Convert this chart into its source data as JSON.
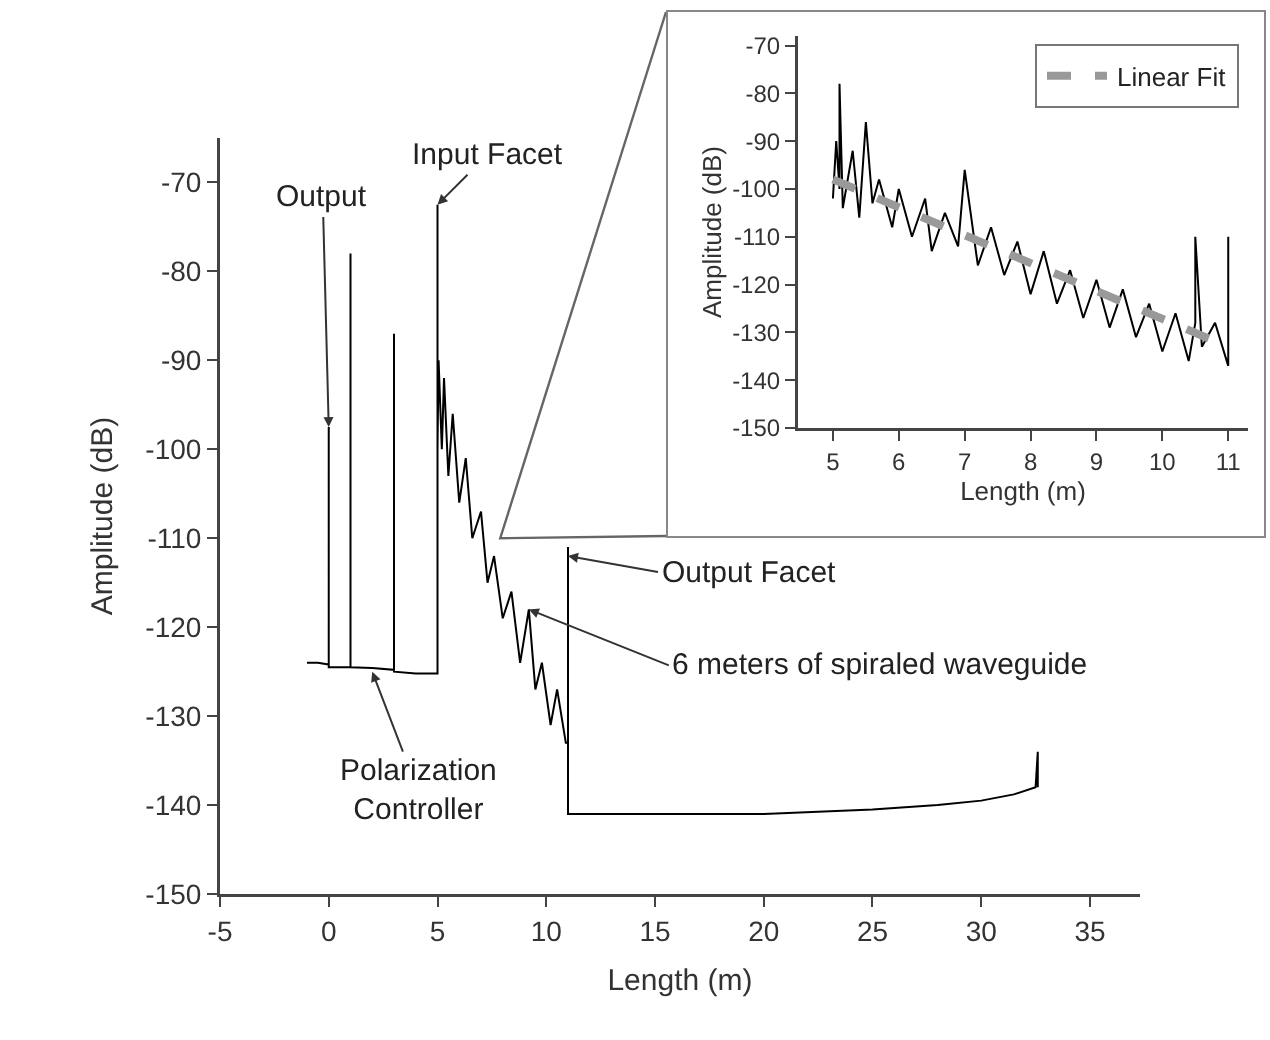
{
  "chart_data": [
    {
      "type": "line",
      "xlabel": "Length (m)",
      "ylabel": "Amplitude (dB)",
      "xlim": [
        -5,
        37.3
      ],
      "ylim": [
        -150,
        -65
      ],
      "xticks": [
        -5,
        0,
        5,
        10,
        15,
        20,
        25,
        30,
        35
      ],
      "yticks": [
        -150,
        -140,
        -130,
        -120,
        -110,
        -100,
        -90,
        -80,
        -70
      ],
      "grid": false,
      "legend": false,
      "series": [
        {
          "color": "#000000",
          "x": [
            -1,
            -0.5,
            0,
            0,
            0,
            0.5,
            1,
            1,
            1,
            2,
            3,
            3,
            3,
            4,
            5,
            5,
            5,
            5.05,
            5.2,
            5.3,
            5.5,
            5.7,
            6,
            6.3,
            6.6,
            7,
            7.3,
            7.6,
            8,
            8.4,
            8.8,
            9.2,
            9.5,
            9.8,
            10.2,
            10.5,
            10.9,
            11,
            11,
            11,
            11.1,
            15,
            20,
            25,
            28,
            30,
            31.5,
            32.5,
            32.6,
            32.6
          ],
          "values": [
            -124,
            -124,
            -124.2,
            -97.5,
            -124.5,
            -124.5,
            -124.5,
            -78,
            -124.5,
            -124.6,
            -124.8,
            -87,
            -125,
            -125.2,
            -125.2,
            -72.5,
            -100,
            -90,
            -100,
            -92,
            -103,
            -96,
            -106,
            -101,
            -110,
            -107,
            -115,
            -112,
            -119,
            -116,
            -124,
            -118,
            -127,
            -124,
            -131,
            -127,
            -133,
            -133,
            -111,
            -141,
            -141,
            -141,
            -141,
            -140.5,
            -140,
            -139.5,
            -138.8,
            -138,
            -134,
            -138
          ]
        }
      ],
      "annotations": [
        {
          "text": "Output",
          "x": 0,
          "y": -97.5
        },
        {
          "text": "Input Facet",
          "x": 5,
          "y": -72.5
        },
        {
          "text": "Polarization\nController",
          "x": 2,
          "y": -125
        },
        {
          "text": "Output Facet",
          "x": 11,
          "y": -112
        },
        {
          "text": "6 meters of spiraled waveguide",
          "x": 9.2,
          "y": -118
        }
      ]
    },
    {
      "type": "line",
      "xlabel": "Length (m)",
      "ylabel": "Amplitude (dB)",
      "xlim": [
        4.47,
        11.3
      ],
      "ylim": [
        -150,
        -68
      ],
      "xticks": [
        5,
        6,
        7,
        8,
        9,
        10,
        11
      ],
      "yticks": [
        -150,
        -140,
        -130,
        -120,
        -110,
        -100,
        -90,
        -80,
        -70
      ],
      "grid": false,
      "legend": "top right",
      "series": [
        {
          "color": "#000000",
          "x": [
            5,
            5.05,
            5.1,
            5.1,
            5.15,
            5.3,
            5.4,
            5.5,
            5.6,
            5.7,
            5.9,
            6,
            6.2,
            6.4,
            6.5,
            6.7,
            6.9,
            7,
            7.2,
            7.4,
            7.6,
            7.8,
            8,
            8.2,
            8.4,
            8.6,
            8.8,
            9,
            9.2,
            9.4,
            9.6,
            9.8,
            10,
            10.2,
            10.4,
            10.5,
            10.5,
            10.6,
            10.8,
            11,
            11,
            11
          ],
          "values": [
            -102,
            -90,
            -100,
            -78,
            -104,
            -92,
            -106,
            -86,
            -103,
            -98,
            -108,
            -100,
            -110,
            -102,
            -113,
            -105,
            -112,
            -96,
            -116,
            -108,
            -118,
            -111,
            -122,
            -113,
            -124,
            -117,
            -127,
            -119,
            -129,
            -121,
            -131,
            -124,
            -134,
            -126,
            -136,
            -128,
            -110,
            -133,
            -128,
            -137,
            -110,
            -134
          ]
        },
        {
          "name": "Linear Fit",
          "color": "#999999",
          "line_style": "dashed",
          "x": [
            5,
            11
          ],
          "values": [
            -98,
            -133
          ]
        }
      ]
    }
  ]
}
